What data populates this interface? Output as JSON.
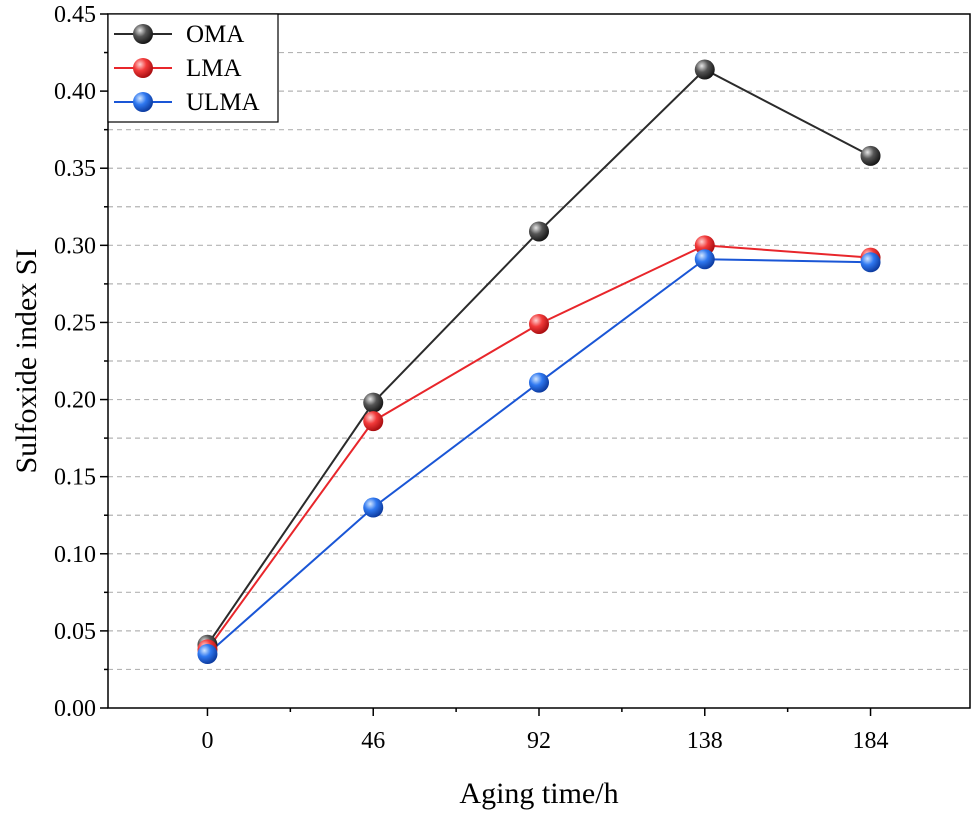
{
  "chart_data": {
    "type": "line",
    "title": "",
    "xlabel": "Aging time/h",
    "ylabel": "Sulfoxide index SI",
    "categories": [
      "0",
      "46",
      "92",
      "138",
      "184"
    ],
    "x": [
      0,
      46,
      92,
      138,
      184
    ],
    "xlim": [
      -27.6,
      211.6
    ],
    "ylim": [
      0,
      0.45
    ],
    "yticks": [
      0.0,
      0.05,
      0.1,
      0.15,
      0.2,
      0.25,
      0.3,
      0.35,
      0.4,
      0.45
    ],
    "ytick_labels": [
      "0.00",
      "0.05",
      "0.10",
      "0.15",
      "0.20",
      "0.25",
      "0.30",
      "0.35",
      "0.40",
      "0.45"
    ],
    "grid": true,
    "legend_position": "top-left",
    "series": [
      {
        "name": "OMA",
        "color": "#2b2b2b",
        "values": [
          0.041,
          0.198,
          0.309,
          0.414,
          0.358
        ]
      },
      {
        "name": "LMA",
        "color": "#e8262b",
        "values": [
          0.038,
          0.186,
          0.249,
          0.3,
          0.292
        ]
      },
      {
        "name": "ULMA",
        "color": "#1a56d6",
        "values": [
          0.035,
          0.13,
          0.211,
          0.291,
          0.289
        ]
      }
    ]
  }
}
